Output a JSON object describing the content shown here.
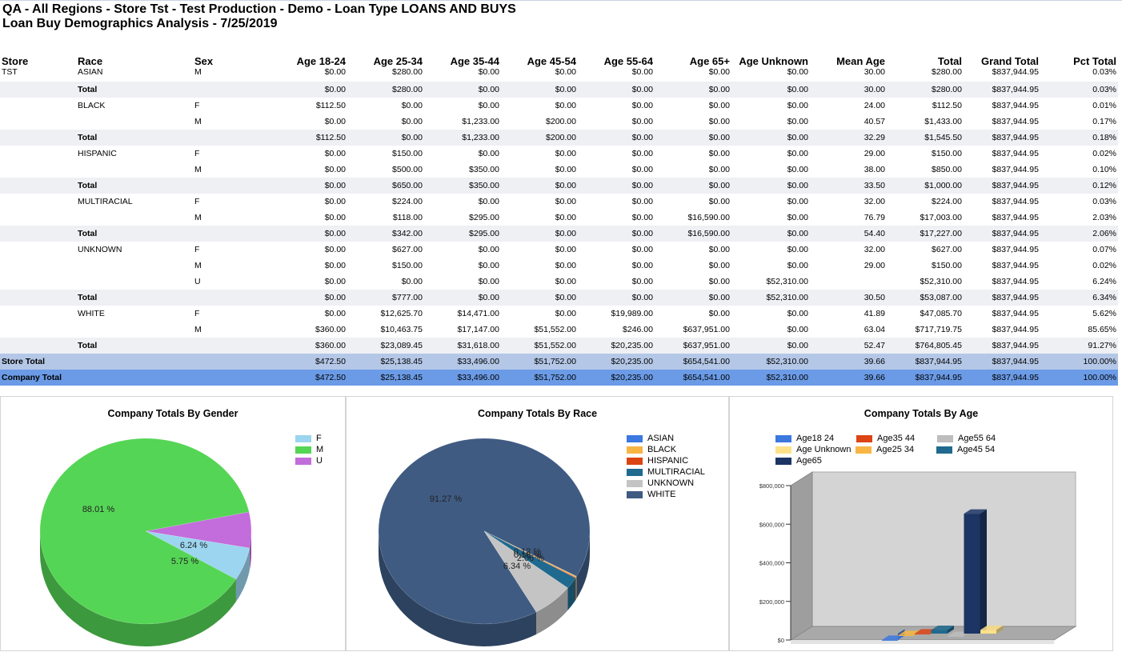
{
  "report": {
    "title_line1": "QA - All Regions - Store Tst - Test Production - Demo - Loan Type LOANS AND BUYS",
    "title_line2": "Loan Buy Demographics Analysis - 7/25/2019"
  },
  "table": {
    "headers": [
      "Store",
      "Race",
      "Sex",
      "Age 18-24",
      "Age 25-34",
      "Age 35-44",
      "Age 45-54",
      "Age 55-64",
      "Age 65+",
      "Age Unknown",
      "Mean Age",
      "Total",
      "Grand Total",
      "Pct Total"
    ],
    "rows": [
      {
        "kind": "first",
        "cells": [
          "TST",
          "ASIAN",
          "M",
          "$0.00",
          "$280.00",
          "$0.00",
          "$0.00",
          "$0.00",
          "$0.00",
          "$0.00",
          "30.00",
          "$280.00",
          "$837,944.95",
          "0.03%"
        ]
      },
      {
        "kind": "tot",
        "cells": [
          "",
          "Total",
          "",
          "$0.00",
          "$280.00",
          "$0.00",
          "$0.00",
          "$0.00",
          "$0.00",
          "$0.00",
          "30.00",
          "$280.00",
          "$837,944.95",
          "0.03%"
        ]
      },
      {
        "kind": "body",
        "cells": [
          "",
          "BLACK",
          "F",
          "$112.50",
          "$0.00",
          "$0.00",
          "$0.00",
          "$0.00",
          "$0.00",
          "$0.00",
          "24.00",
          "$112.50",
          "$837,944.95",
          "0.01%"
        ]
      },
      {
        "kind": "body",
        "cells": [
          "",
          "",
          "M",
          "$0.00",
          "$0.00",
          "$1,233.00",
          "$200.00",
          "$0.00",
          "$0.00",
          "$0.00",
          "40.57",
          "$1,433.00",
          "$837,944.95",
          "0.17%"
        ]
      },
      {
        "kind": "tot",
        "cells": [
          "",
          "Total",
          "",
          "$112.50",
          "$0.00",
          "$1,233.00",
          "$200.00",
          "$0.00",
          "$0.00",
          "$0.00",
          "32.29",
          "$1,545.50",
          "$837,944.95",
          "0.18%"
        ]
      },
      {
        "kind": "body",
        "cells": [
          "",
          "HISPANIC",
          "F",
          "$0.00",
          "$150.00",
          "$0.00",
          "$0.00",
          "$0.00",
          "$0.00",
          "$0.00",
          "29.00",
          "$150.00",
          "$837,944.95",
          "0.02%"
        ]
      },
      {
        "kind": "body",
        "cells": [
          "",
          "",
          "M",
          "$0.00",
          "$500.00",
          "$350.00",
          "$0.00",
          "$0.00",
          "$0.00",
          "$0.00",
          "38.00",
          "$850.00",
          "$837,944.95",
          "0.10%"
        ]
      },
      {
        "kind": "tot",
        "cells": [
          "",
          "Total",
          "",
          "$0.00",
          "$650.00",
          "$350.00",
          "$0.00",
          "$0.00",
          "$0.00",
          "$0.00",
          "33.50",
          "$1,000.00",
          "$837,944.95",
          "0.12%"
        ]
      },
      {
        "kind": "body",
        "cells": [
          "",
          "MULTIRACIAL",
          "F",
          "$0.00",
          "$224.00",
          "$0.00",
          "$0.00",
          "$0.00",
          "$0.00",
          "$0.00",
          "32.00",
          "$224.00",
          "$837,944.95",
          "0.03%"
        ]
      },
      {
        "kind": "body",
        "cells": [
          "",
          "",
          "M",
          "$0.00",
          "$118.00",
          "$295.00",
          "$0.00",
          "$0.00",
          "$16,590.00",
          "$0.00",
          "76.79",
          "$17,003.00",
          "$837,944.95",
          "2.03%"
        ]
      },
      {
        "kind": "tot",
        "cells": [
          "",
          "Total",
          "",
          "$0.00",
          "$342.00",
          "$295.00",
          "$0.00",
          "$0.00",
          "$16,590.00",
          "$0.00",
          "54.40",
          "$17,227.00",
          "$837,944.95",
          "2.06%"
        ]
      },
      {
        "kind": "body",
        "cells": [
          "",
          "UNKNOWN",
          "F",
          "$0.00",
          "$627.00",
          "$0.00",
          "$0.00",
          "$0.00",
          "$0.00",
          "$0.00",
          "32.00",
          "$627.00",
          "$837,944.95",
          "0.07%"
        ]
      },
      {
        "kind": "body",
        "cells": [
          "",
          "",
          "M",
          "$0.00",
          "$150.00",
          "$0.00",
          "$0.00",
          "$0.00",
          "$0.00",
          "$0.00",
          "29.00",
          "$150.00",
          "$837,944.95",
          "0.02%"
        ]
      },
      {
        "kind": "body",
        "cells": [
          "",
          "",
          "U",
          "$0.00",
          "$0.00",
          "$0.00",
          "$0.00",
          "$0.00",
          "$0.00",
          "$52,310.00",
          "",
          "$52,310.00",
          "$837,944.95",
          "6.24%"
        ]
      },
      {
        "kind": "tot",
        "cells": [
          "",
          "Total",
          "",
          "$0.00",
          "$777.00",
          "$0.00",
          "$0.00",
          "$0.00",
          "$0.00",
          "$52,310.00",
          "30.50",
          "$53,087.00",
          "$837,944.95",
          "6.34%"
        ]
      },
      {
        "kind": "body",
        "cells": [
          "",
          "WHITE",
          "F",
          "$0.00",
          "$12,625.70",
          "$14,471.00",
          "$0.00",
          "$19,989.00",
          "$0.00",
          "$0.00",
          "41.89",
          "$47,085.70",
          "$837,944.95",
          "5.62%"
        ]
      },
      {
        "kind": "body",
        "cells": [
          "",
          "",
          "M",
          "$360.00",
          "$10,463.75",
          "$17,147.00",
          "$51,552.00",
          "$246.00",
          "$637,951.00",
          "$0.00",
          "63.04",
          "$717,719.75",
          "$837,944.95",
          "85.65%"
        ]
      },
      {
        "kind": "tot",
        "cells": [
          "",
          "Total",
          "",
          "$360.00",
          "$23,089.45",
          "$31,618.00",
          "$51,552.00",
          "$20,235.00",
          "$637,951.00",
          "$0.00",
          "52.47",
          "$764,805.45",
          "$837,944.95",
          "91.27%"
        ]
      },
      {
        "kind": "store",
        "cells": [
          "Store Total",
          "",
          "",
          "$472.50",
          "$25,138.45",
          "$33,496.00",
          "$51,752.00",
          "$20,235.00",
          "$654,541.00",
          "$52,310.00",
          "39.66",
          "$837,944.95",
          "$837,944.95",
          "100.00%"
        ]
      },
      {
        "kind": "company",
        "cells": [
          "Company Total",
          "",
          "",
          "$472.50",
          "$25,138.45",
          "$33,496.00",
          "$51,752.00",
          "$20,235.00",
          "$654,541.00",
          "$52,310.00",
          "39.66",
          "$837,944.95",
          "$837,944.95",
          "100.00%"
        ]
      }
    ]
  },
  "chart_data": [
    {
      "type": "pie",
      "title": "Company Totals By Gender",
      "labels": [
        "F",
        "M",
        "U"
      ],
      "values": [
        5.75,
        88.01,
        6.24
      ],
      "value_labels": [
        "5.75 %",
        "88.01 %",
        "6.24 %"
      ],
      "colors": [
        "#9cd5ef",
        "#55d555",
        "#c36cdb"
      ],
      "legend": "top-right"
    },
    {
      "type": "pie",
      "title": "Company Totals By Race",
      "labels": [
        "ASIAN",
        "BLACK",
        "HISPANIC",
        "MULTIRACIAL",
        "UNKNOWN",
        "WHITE"
      ],
      "values": [
        0.03,
        0.18,
        0.12,
        2.06,
        6.34,
        91.27
      ],
      "value_labels": [
        "",
        "0.18 %",
        "0.12 %",
        "2.06 %",
        "6.34 %",
        "91.27 %"
      ],
      "colors": [
        "#3b78e0",
        "#f7b644",
        "#dc4414",
        "#1f6a8e",
        "#c4c4c4",
        "#3f5b82"
      ],
      "legend": "top-right"
    },
    {
      "type": "bar",
      "title": "Company Totals By Age",
      "categories": [
        "Age18 24",
        "Age25 34",
        "Age35 44",
        "Age45 54",
        "Age55 64",
        "Age65",
        "Age Unknown"
      ],
      "values": [
        472.5,
        25138.45,
        33496.0,
        51752.0,
        20235.0,
        654541.0,
        52310.0
      ],
      "colors": [
        "#3b78e0",
        "#f7b644",
        "#dc4414",
        "#1f6a8e",
        "#bdbdbd",
        "#1d3564",
        "#fde28a"
      ],
      "yticks": [
        "$0",
        "$200,000",
        "$400,000",
        "$600,000",
        "$800,000"
      ],
      "ylim": [
        0,
        800000
      ],
      "legend": "top"
    }
  ]
}
